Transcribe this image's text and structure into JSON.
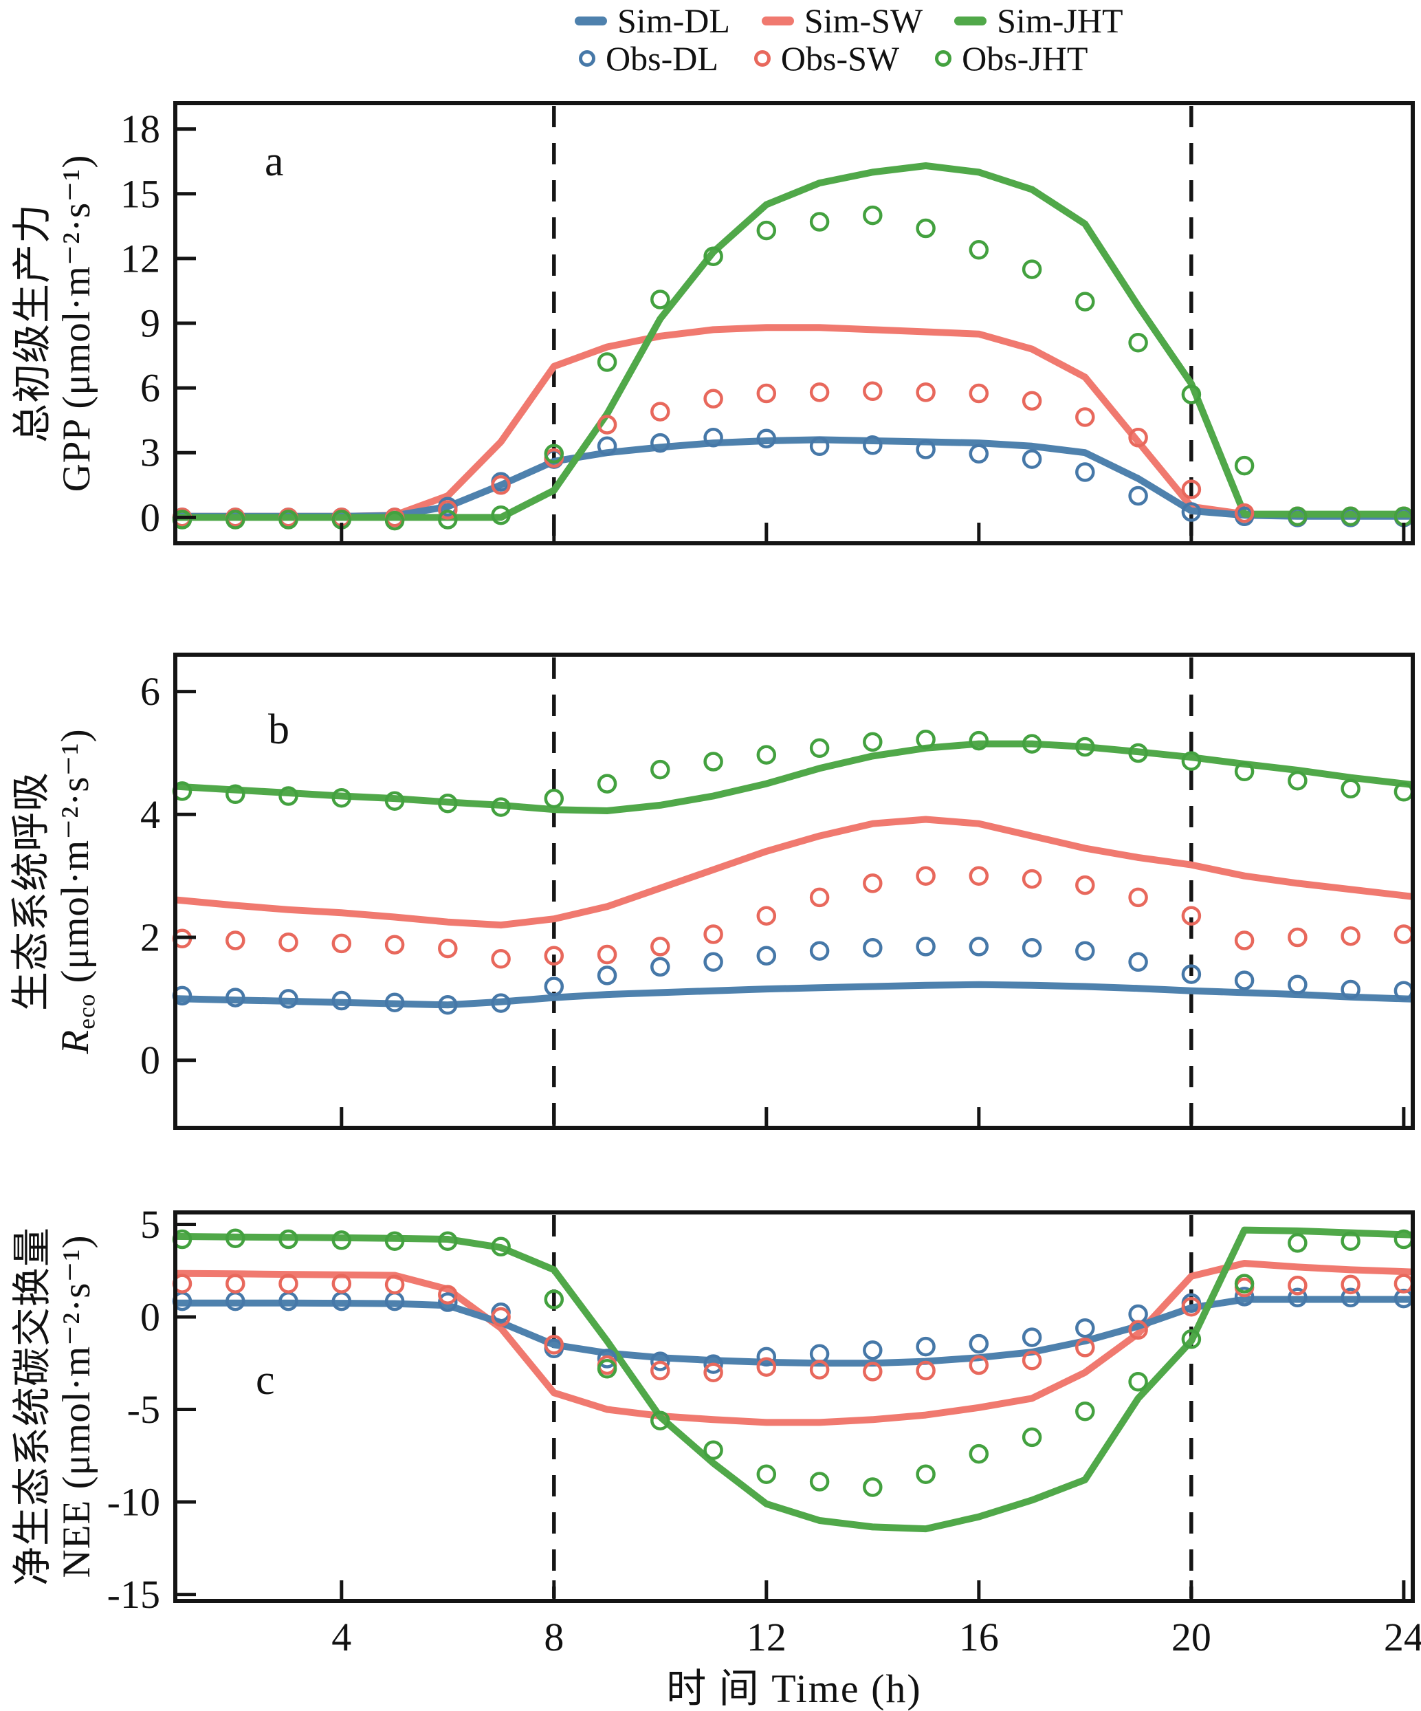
{
  "colors": {
    "sim_blue": "#4e81ad",
    "sim_red": "#f0796f",
    "sim_green": "#50a849",
    "obs_blue": "#4678a8",
    "obs_red": "#e8685c",
    "obs_green": "#43a13f",
    "axis": "#141414"
  },
  "legend": {
    "row1": [
      {
        "label": "Sim-DL",
        "color": "sim_blue"
      },
      {
        "label": "Sim-SW",
        "color": "sim_red"
      },
      {
        "label": "Sim-JHT",
        "color": "sim_green"
      }
    ],
    "row2": [
      {
        "label": "Obs-DL",
        "color": "obs_blue"
      },
      {
        "label": "Obs-SW",
        "color": "obs_red"
      },
      {
        "label": "Obs-JHT",
        "color": "obs_green"
      }
    ]
  },
  "x_axis": {
    "label": "时 间 Time (h)",
    "ticks": [
      4,
      8,
      12,
      16,
      20,
      24
    ],
    "xlim": [
      0.87,
      24.17
    ],
    "vlines": [
      8,
      20
    ],
    "hours": [
      1,
      2,
      3,
      4,
      5,
      6,
      7,
      8,
      9,
      10,
      11,
      12,
      13,
      14,
      15,
      16,
      17,
      18,
      19,
      20,
      21,
      22,
      23,
      24
    ]
  },
  "chart_data": [
    {
      "id": "a",
      "panel_label": "a",
      "type": "line",
      "ylabel_zh": "总初级生产力",
      "ylabel_en": "GPP (μmol·m⁻²·s⁻¹)",
      "ylim": [
        -1.2,
        19.2
      ],
      "yticks": [
        0,
        3,
        6,
        9,
        12,
        15,
        18
      ],
      "show_x_tick_labels": false,
      "series": [
        {
          "name": "Sim-SW",
          "kind": "line",
          "color": "sim_red",
          "values": [
            0.05,
            0.05,
            0.05,
            0.05,
            0.1,
            1.0,
            3.5,
            7.0,
            7.9,
            8.4,
            8.7,
            8.8,
            8.8,
            8.7,
            8.6,
            8.5,
            7.8,
            6.5,
            3.5,
            0.5,
            0.15,
            0.1,
            0.1,
            0.1
          ]
        },
        {
          "name": "Sim-DL",
          "kind": "line",
          "color": "sim_blue",
          "values": [
            0.05,
            0.05,
            0.05,
            0.05,
            0.08,
            0.5,
            1.5,
            2.6,
            3.0,
            3.25,
            3.45,
            3.55,
            3.6,
            3.55,
            3.5,
            3.45,
            3.3,
            3.0,
            1.8,
            0.3,
            0.1,
            0.05,
            0.05,
            0.05
          ]
        },
        {
          "name": "Sim-JHT",
          "kind": "line",
          "color": "sim_green",
          "values": [
            0,
            0,
            0,
            0,
            0,
            0,
            0,
            1.25,
            4.8,
            9.2,
            12.3,
            14.5,
            15.5,
            16.0,
            16.3,
            16.0,
            15.2,
            13.6,
            9.8,
            6.2,
            0.15,
            0.15,
            0.15,
            0.15
          ]
        },
        {
          "name": "Obs-DL",
          "kind": "scatter",
          "color": "obs_blue",
          "values": [
            0,
            0,
            0,
            0,
            0,
            0.5,
            1.65,
            2.7,
            3.3,
            3.45,
            3.7,
            3.65,
            3.3,
            3.35,
            3.15,
            2.95,
            2.7,
            2.1,
            1.0,
            0.25,
            0.05,
            0,
            0,
            0
          ]
        },
        {
          "name": "Obs-SW",
          "kind": "scatter",
          "color": "obs_red",
          "values": [
            0,
            0,
            0,
            0,
            0,
            0.35,
            1.5,
            2.75,
            4.3,
            4.9,
            5.5,
            5.75,
            5.8,
            5.85,
            5.8,
            5.75,
            5.4,
            4.65,
            3.7,
            1.3,
            0.2,
            0.05,
            0.05,
            0.05
          ]
        },
        {
          "name": "Obs-JHT",
          "kind": "scatter",
          "color": "obs_green",
          "values": [
            -0.1,
            -0.1,
            -0.1,
            -0.1,
            -0.15,
            -0.1,
            0.1,
            2.95,
            7.2,
            10.1,
            12.1,
            13.3,
            13.7,
            14.0,
            13.4,
            12.4,
            11.5,
            10.0,
            8.1,
            5.7,
            2.4,
            0.05,
            0.05,
            0.05
          ]
        }
      ]
    },
    {
      "id": "b",
      "panel_label": "b",
      "type": "line",
      "ylabel_zh": "生态系统呼吸",
      "ylabel_sym": "R",
      "ylabel_sub": "eco",
      "ylabel_en_rest": " (μmol·m⁻²·s⁻¹)",
      "ylim": [
        -1.1,
        6.6
      ],
      "yticks": [
        0,
        2,
        4,
        6
      ],
      "show_x_tick_labels": false,
      "series": [
        {
          "name": "Sim-SW",
          "kind": "line",
          "color": "sim_red",
          "values": [
            2.6,
            2.52,
            2.45,
            2.4,
            2.33,
            2.25,
            2.2,
            2.3,
            2.5,
            2.8,
            3.1,
            3.4,
            3.65,
            3.85,
            3.92,
            3.85,
            3.65,
            3.45,
            3.3,
            3.18,
            3.0,
            2.88,
            2.78,
            2.68
          ]
        },
        {
          "name": "Sim-DL",
          "kind": "line",
          "color": "sim_blue",
          "values": [
            1.0,
            0.98,
            0.96,
            0.94,
            0.92,
            0.9,
            0.95,
            1.02,
            1.07,
            1.1,
            1.13,
            1.16,
            1.18,
            1.2,
            1.22,
            1.23,
            1.22,
            1.2,
            1.17,
            1.13,
            1.1,
            1.07,
            1.03,
            1.0
          ]
        },
        {
          "name": "Sim-JHT",
          "kind": "line",
          "color": "sim_green",
          "values": [
            4.45,
            4.4,
            4.35,
            4.3,
            4.26,
            4.2,
            4.15,
            4.08,
            4.06,
            4.15,
            4.3,
            4.5,
            4.75,
            4.95,
            5.08,
            5.15,
            5.15,
            5.1,
            5.02,
            4.93,
            4.82,
            4.72,
            4.6,
            4.5
          ]
        },
        {
          "name": "Obs-DL",
          "kind": "scatter",
          "color": "obs_blue",
          "values": [
            1.05,
            1.02,
            1.0,
            0.97,
            0.94,
            0.9,
            0.93,
            1.2,
            1.38,
            1.52,
            1.6,
            1.7,
            1.78,
            1.83,
            1.85,
            1.85,
            1.83,
            1.78,
            1.6,
            1.4,
            1.3,
            1.23,
            1.15,
            1.13
          ]
        },
        {
          "name": "Obs-SW",
          "kind": "scatter",
          "color": "obs_red",
          "values": [
            1.98,
            1.95,
            1.92,
            1.9,
            1.88,
            1.82,
            1.65,
            1.7,
            1.72,
            1.85,
            2.05,
            2.35,
            2.65,
            2.88,
            3.0,
            3.0,
            2.95,
            2.85,
            2.65,
            2.35,
            1.95,
            2.0,
            2.02,
            2.05
          ]
        },
        {
          "name": "Obs-JHT",
          "kind": "scatter",
          "color": "obs_green",
          "values": [
            4.38,
            4.33,
            4.3,
            4.27,
            4.22,
            4.18,
            4.12,
            4.26,
            4.5,
            4.73,
            4.86,
            4.97,
            5.08,
            5.18,
            5.22,
            5.2,
            5.15,
            5.1,
            5.0,
            4.87,
            4.7,
            4.55,
            4.42,
            4.37
          ]
        }
      ]
    },
    {
      "id": "c",
      "panel_label": "c",
      "type": "line",
      "ylabel_zh": "净生态系统碳交换量",
      "ylabel_en": "NEE (μmol·m⁻²·s⁻¹)",
      "ylim": [
        -15.35,
        5.65
      ],
      "yticks": [
        5,
        0,
        -5,
        -10,
        -15
      ],
      "show_x_tick_labels": true,
      "series": [
        {
          "name": "Sim-SW",
          "kind": "line",
          "color": "sim_red",
          "values": [
            2.35,
            2.33,
            2.3,
            2.28,
            2.25,
            1.5,
            -0.6,
            -4.1,
            -5.0,
            -5.35,
            -5.55,
            -5.7,
            -5.7,
            -5.55,
            -5.3,
            -4.9,
            -4.4,
            -3.0,
            -0.9,
            2.2,
            2.9,
            2.7,
            2.55,
            2.45
          ]
        },
        {
          "name": "Sim-DL",
          "kind": "line",
          "color": "sim_blue",
          "values": [
            0.75,
            0.75,
            0.75,
            0.74,
            0.72,
            0.62,
            -0.3,
            -1.5,
            -1.95,
            -2.2,
            -2.35,
            -2.45,
            -2.5,
            -2.5,
            -2.4,
            -2.2,
            -1.9,
            -1.3,
            -0.5,
            0.5,
            0.95,
            0.95,
            0.95,
            0.95
          ]
        },
        {
          "name": "Sim-JHT",
          "kind": "line",
          "color": "sim_green",
          "values": [
            4.35,
            4.32,
            4.3,
            4.28,
            4.25,
            4.2,
            3.75,
            2.55,
            -1.3,
            -5.4,
            -7.9,
            -10.1,
            -11.0,
            -11.35,
            -11.45,
            -10.8,
            -9.9,
            -8.8,
            -4.4,
            -1.3,
            4.7,
            4.65,
            4.55,
            4.45
          ]
        },
        {
          "name": "Obs-DL",
          "kind": "scatter",
          "color": "obs_blue",
          "values": [
            0.85,
            0.85,
            0.85,
            0.85,
            0.85,
            0.8,
            0.25,
            -1.7,
            -2.25,
            -2.4,
            -2.55,
            -2.15,
            -2.0,
            -1.8,
            -1.6,
            -1.45,
            -1.1,
            -0.6,
            0.15,
            0.75,
            1.1,
            1.05,
            1.05,
            1.0
          ]
        },
        {
          "name": "Obs-SW",
          "kind": "scatter",
          "color": "obs_red",
          "values": [
            1.8,
            1.8,
            1.8,
            1.8,
            1.75,
            1.2,
            0.0,
            -1.5,
            -2.6,
            -2.9,
            -3.0,
            -2.7,
            -2.85,
            -2.95,
            -2.9,
            -2.6,
            -2.35,
            -1.65,
            -0.7,
            0.55,
            1.6,
            1.7,
            1.75,
            1.8
          ]
        },
        {
          "name": "Obs-JHT",
          "kind": "scatter",
          "color": "obs_green",
          "values": [
            4.2,
            4.25,
            4.2,
            4.15,
            4.1,
            4.1,
            3.8,
            0.95,
            -2.8,
            -5.6,
            -7.2,
            -8.5,
            -8.9,
            -9.2,
            -8.5,
            -7.4,
            -6.5,
            -5.1,
            -3.5,
            -1.2,
            1.8,
            4.0,
            4.1,
            4.2
          ]
        }
      ]
    }
  ]
}
